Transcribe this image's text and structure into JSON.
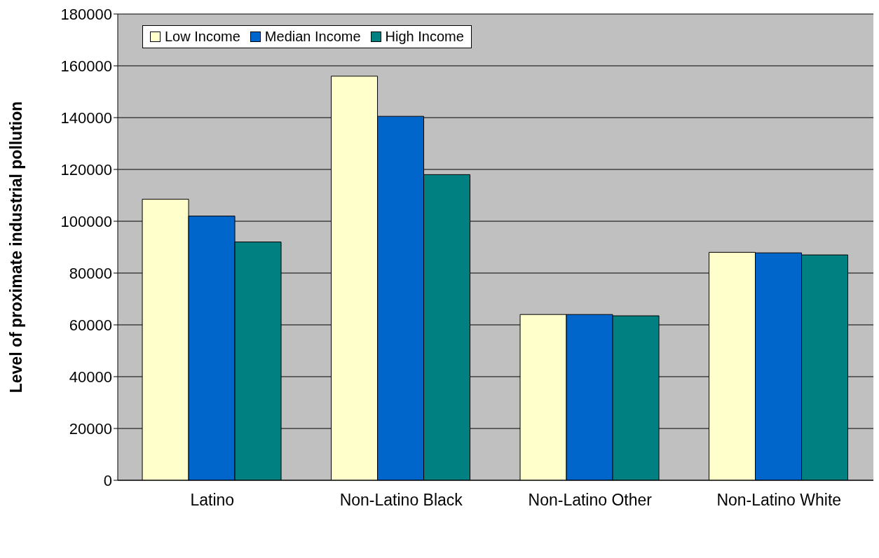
{
  "chart_data": {
    "type": "bar",
    "ylabel": "Level of proximate industrial pollution",
    "categories": [
      "Latino",
      "Non-Latino Black",
      "Non-Latino Other",
      "Non-Latino White"
    ],
    "series": [
      {
        "name": "Low Income",
        "color": "#ffffcc",
        "values": [
          108500,
          156000,
          64000,
          88000
        ]
      },
      {
        "name": "Median Income",
        "color": "#0066cc",
        "values": [
          102000,
          140500,
          64000,
          87800
        ]
      },
      {
        "name": "High Income",
        "color": "#008080",
        "values": [
          92000,
          118000,
          63500,
          87000
        ]
      }
    ],
    "ylim": [
      0,
      180000
    ],
    "yticks": [
      0,
      20000,
      40000,
      60000,
      80000,
      100000,
      120000,
      140000,
      160000,
      180000
    ],
    "grid": "y",
    "legend": "top left"
  }
}
